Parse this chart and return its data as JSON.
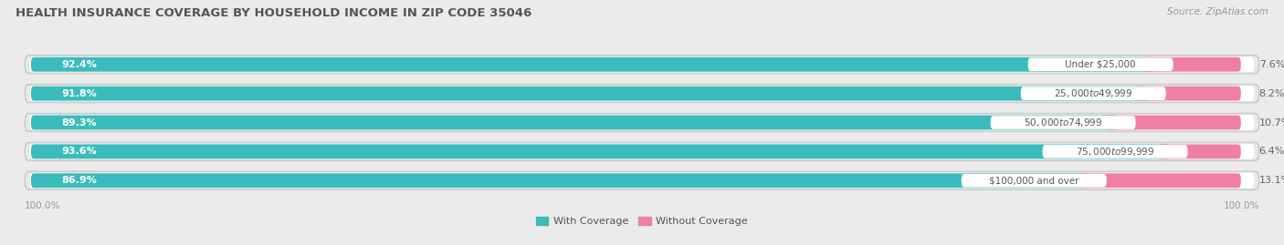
{
  "title": "HEALTH INSURANCE COVERAGE BY HOUSEHOLD INCOME IN ZIP CODE 35046",
  "source": "Source: ZipAtlas.com",
  "categories": [
    "Under $25,000",
    "$25,000 to $49,999",
    "$50,000 to $74,999",
    "$75,000 to $99,999",
    "$100,000 and over"
  ],
  "with_coverage": [
    92.4,
    91.8,
    89.3,
    93.6,
    86.9
  ],
  "without_coverage": [
    7.6,
    8.2,
    10.7,
    6.4,
    13.1
  ],
  "color_with": "#3BBCBC",
  "color_without": "#F07FA8",
  "bg_color": "#ebebeb",
  "bar_bg_color": "#ffffff",
  "title_fontsize": 9.5,
  "label_fontsize": 8.0,
  "pct_fontsize": 8.0,
  "tick_fontsize": 7.5,
  "source_fontsize": 7.5,
  "bar_height": 0.62,
  "total_width": 100.0
}
